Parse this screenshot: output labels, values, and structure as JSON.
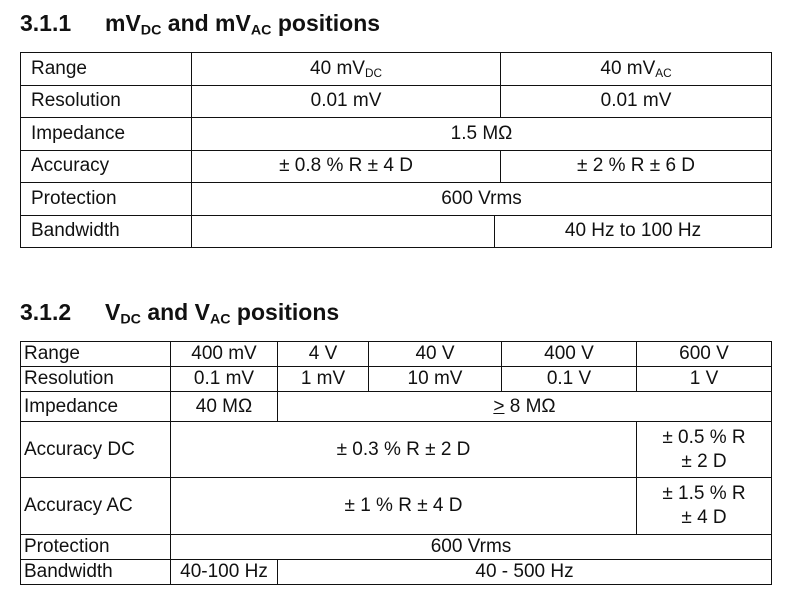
{
  "s1": {
    "num": "3.1.1",
    "pre": "mV",
    "s1": "DC",
    "mid": " and mV",
    "s2": "AC",
    "post": " positions",
    "rows": [
      {
        "l": "Range",
        "a": "40 mV",
        "as": "DC",
        "b": "40 mV",
        "bs": "AC"
      },
      {
        "l": "Resolution",
        "a": "0.01 mV",
        "b": "0.01 mV"
      },
      {
        "l": "Impedance",
        "v": "1.5 MΩ"
      },
      {
        "l": "Accuracy",
        "a": "± 0.8 % R ± 4 D",
        "b": "± 2 % R ± 6 D"
      },
      {
        "l": "Protection",
        "v": "600 Vrms"
      },
      {
        "l": "Bandwidth",
        "a": "",
        "b": "40 Hz to 100 Hz"
      }
    ]
  },
  "s2": {
    "num": "3.1.2",
    "pre": "V",
    "s1": "DC",
    "mid": " and V",
    "s2": "AC",
    "post": " positions",
    "rows": [
      {
        "l": "Range",
        "c": [
          "400 mV",
          "4 V",
          "40 V",
          "400 V",
          "600 V"
        ]
      },
      {
        "l": "Resolution",
        "c": [
          "0.1 mV",
          "1 mV",
          "10 mV",
          "0.1 V",
          "1 V"
        ]
      },
      {
        "l": "Impedance",
        "a": "40 MΩ",
        "bp": ">",
        "bt": " 8 MΩ"
      },
      {
        "l": "Accuracy DC",
        "a": "± 0.3 % R ± 2 D",
        "b1": "± 0.5 % R",
        "b2": "± 2 D"
      },
      {
        "l": "Accuracy AC",
        "a": "± 1 % R ± 4 D",
        "b1": "± 1.5 % R",
        "b2": "± 4 D"
      },
      {
        "l": "Protection",
        "v": "600 Vrms"
      },
      {
        "l": "Bandwidth",
        "a": "40-100 Hz",
        "b": "40 - 500 Hz"
      }
    ]
  }
}
